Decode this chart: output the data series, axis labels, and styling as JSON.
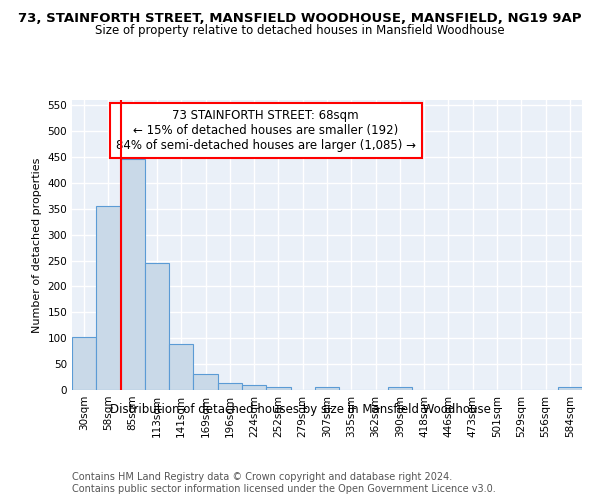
{
  "title1": "73, STAINFORTH STREET, MANSFIELD WOODHOUSE, MANSFIELD, NG19 9AP",
  "title2": "Size of property relative to detached houses in Mansfield Woodhouse",
  "xlabel": "Distribution of detached houses by size in Mansfield Woodhouse",
  "ylabel": "Number of detached properties",
  "footer1": "Contains HM Land Registry data © Crown copyright and database right 2024.",
  "footer2": "Contains public sector information licensed under the Open Government Licence v3.0.",
  "bin_labels": [
    "30sqm",
    "58sqm",
    "85sqm",
    "113sqm",
    "141sqm",
    "169sqm",
    "196sqm",
    "224sqm",
    "252sqm",
    "279sqm",
    "307sqm",
    "335sqm",
    "362sqm",
    "390sqm",
    "418sqm",
    "446sqm",
    "473sqm",
    "501sqm",
    "529sqm",
    "556sqm",
    "584sqm"
  ],
  "bar_values": [
    102,
    356,
    446,
    246,
    88,
    30,
    14,
    10,
    6,
    0,
    6,
    0,
    0,
    6,
    0,
    0,
    0,
    0,
    0,
    0,
    6
  ],
  "bar_color": "#c9d9e8",
  "bar_edge_color": "#5b9bd5",
  "vline_x_index": 1.5,
  "vline_color": "red",
  "annotation_line1": "73 STAINFORTH STREET: 68sqm",
  "annotation_line2": "← 15% of detached houses are smaller (192)",
  "annotation_line3": "84% of semi-detached houses are larger (1,085) →",
  "ylim": [
    0,
    560
  ],
  "yticks": [
    0,
    50,
    100,
    150,
    200,
    250,
    300,
    350,
    400,
    450,
    500,
    550
  ],
  "bg_color": "#eaf0f8",
  "grid_color": "#ffffff",
  "annotation_box_color": "white",
  "annotation_box_edge": "red",
  "title1_fontsize": 9.5,
  "title2_fontsize": 8.5,
  "xlabel_fontsize": 8.5,
  "ylabel_fontsize": 8,
  "tick_fontsize": 7.5,
  "footer_fontsize": 7,
  "annotation_fontsize": 8.5
}
